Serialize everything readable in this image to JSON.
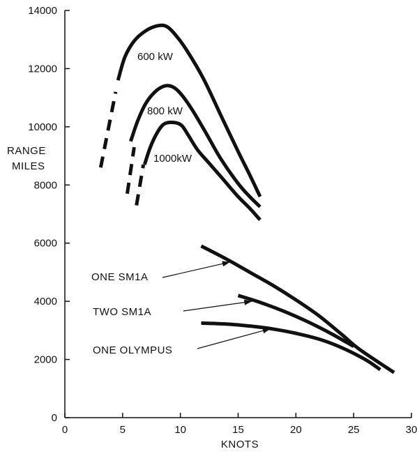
{
  "chart_data": {
    "type": "line",
    "xlabel": "KNOTS",
    "ylabel_lines": [
      "RANGE",
      "MILES"
    ],
    "xlim": [
      0,
      30
    ],
    "ylim": [
      0,
      14000
    ],
    "x_ticks": [
      "0",
      "5",
      "10",
      "15",
      "20",
      "25",
      "30"
    ],
    "y_ticks": [
      "0",
      "2000",
      "4000",
      "6000",
      "8000",
      "10000",
      "12000",
      "14000"
    ],
    "grid": false,
    "series": [
      {
        "name": "600 kW",
        "x": [
          4.6,
          5.2,
          6.0,
          7.0,
          8.0,
          8.8,
          9.6,
          10.6,
          12.0,
          13.5,
          15.0,
          16.0,
          16.9
        ],
        "y": [
          11600,
          12400,
          12950,
          13300,
          13470,
          13450,
          13150,
          12600,
          11650,
          10400,
          9150,
          8350,
          7600
        ],
        "dashed_x": [
          3.1,
          4.4
        ],
        "dashed_y": [
          8600,
          11200
        ]
      },
      {
        "name": "800 kW",
        "x": [
          5.7,
          6.3,
          7.0,
          7.8,
          8.6,
          9.3,
          10.0,
          11.0,
          12.2,
          13.5,
          15.0,
          16.0,
          16.9
        ],
        "y": [
          9500,
          10200,
          10800,
          11200,
          11400,
          11380,
          11150,
          10600,
          9800,
          8900,
          8050,
          7600,
          7250
        ]
      },
      {
        "name": "1000kW",
        "x": [
          6.9,
          7.4,
          8.0,
          8.6,
          9.4,
          10.1,
          10.7,
          11.5,
          12.6,
          13.8,
          15.0,
          16.0,
          16.9
        ],
        "y": [
          8700,
          9300,
          9800,
          10100,
          10150,
          10050,
          9700,
          9200,
          8700,
          8150,
          7600,
          7200,
          6800
        ]
      },
      {
        "name": "ONE SM1A",
        "x": [
          11.8,
          14,
          16,
          18,
          20,
          22,
          24,
          25.5,
          28.5
        ],
        "y": [
          5900,
          5450,
          5000,
          4550,
          4050,
          3500,
          2850,
          2350,
          1550
        ]
      },
      {
        "name": "TWO SM1A",
        "x": [
          15,
          17,
          19,
          21,
          23,
          25
        ],
        "y": [
          4200,
          3950,
          3650,
          3300,
          2900,
          2450
        ]
      },
      {
        "name": "ONE OLYMPUS",
        "x": [
          11.8,
          14,
          16,
          18,
          20,
          22,
          24,
          26,
          27.3
        ],
        "y": [
          3250,
          3220,
          3150,
          3050,
          2900,
          2700,
          2400,
          2000,
          1650
        ]
      }
    ],
    "dashes": [
      {
        "x": [
          5.4,
          6.0
        ],
        "y": [
          7700,
          9300
        ]
      },
      {
        "x": [
          6.2,
          6.8
        ],
        "y": [
          7300,
          8700
        ]
      }
    ],
    "annotations": [
      {
        "text": "ONE SM1A",
        "target_series": "ONE SM1A",
        "target_x": 14.3,
        "target_y": 5350
      },
      {
        "text": "TWO SM1A",
        "target_series": "TWO SM1A",
        "target_x": 16.2,
        "target_y": 4000
      },
      {
        "text": "ONE OLYMPUS",
        "target_series": "ONE OLYMPUS",
        "target_x": 17.8,
        "target_y": 3060
      }
    ]
  }
}
